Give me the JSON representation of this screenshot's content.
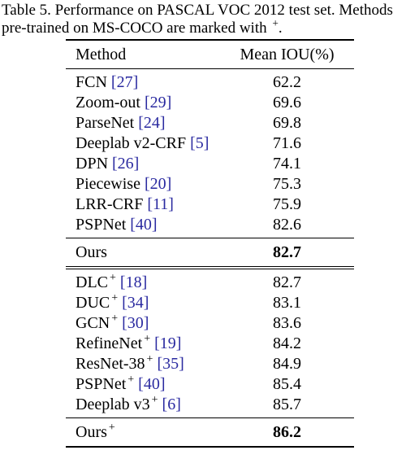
{
  "caption": {
    "line1": "Table 5. Performance on PASCAL VOC 2012 test set.  Methods",
    "line2": "pre-trained on MS-COCO are marked with",
    "marker": "+",
    "end": "."
  },
  "table": {
    "headers": {
      "method": "Method",
      "value": "Mean IOU(%)"
    },
    "group1": [
      {
        "name": "FCN",
        "cite": "[27]",
        "value": "62.2"
      },
      {
        "name": "Zoom-out",
        "cite": "[29]",
        "value": "69.6"
      },
      {
        "name": "ParseNet",
        "cite": "[24]",
        "value": "69.8"
      },
      {
        "name": "Deeplab v2-CRF",
        "cite": "[5]",
        "value": "71.6"
      },
      {
        "name": "DPN",
        "cite": "[26]",
        "value": "74.1"
      },
      {
        "name": "Piecewise",
        "cite": "[20]",
        "value": "75.3"
      },
      {
        "name": "LRR-CRF",
        "cite": "[11]",
        "value": "75.9"
      },
      {
        "name": "PSPNet",
        "cite": "[40]",
        "value": "82.6"
      }
    ],
    "ours1": {
      "name": "Ours",
      "value": "82.7"
    },
    "group2": [
      {
        "name": "DLC",
        "sup": "+",
        "cite": "[18]",
        "value": "82.7"
      },
      {
        "name": "DUC",
        "sup": "+",
        "cite": "[34]",
        "value": "83.1"
      },
      {
        "name": "GCN",
        "sup": "+",
        "cite": "[30]",
        "value": "83.6"
      },
      {
        "name": "RefineNet",
        "sup": "+",
        "cite": "[19]",
        "value": "84.2"
      },
      {
        "name": "ResNet-38",
        "sup": "+",
        "cite": "[35]",
        "value": "84.9"
      },
      {
        "name": "PSPNet",
        "sup": "+",
        "cite": "[40]",
        "value": "85.4"
      },
      {
        "name": "Deeplab v3",
        "sup": "+",
        "cite": "[6]",
        "value": "85.7"
      }
    ],
    "ours2": {
      "name": "Ours",
      "sup": "+",
      "value": "86.2"
    }
  }
}
